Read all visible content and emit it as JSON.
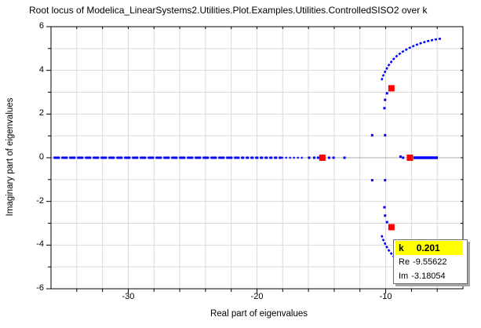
{
  "title": "Root locus of Modelica_LinearSystems2.Utilities.Plot.Examples.Utilities.ControlledSISO2 over k",
  "axes": {
    "x": {
      "label": "Real part of eigenvalues",
      "min": -36,
      "max": -4,
      "major_ticks": [
        {
          "v": -30,
          "label": "-30"
        },
        {
          "v": -20,
          "label": "-20"
        },
        {
          "v": -10,
          "label": "-10"
        }
      ],
      "minor_step": 2
    },
    "y": {
      "label": "Imaginary part of eigenvalues",
      "min": -6,
      "max": 6,
      "major_ticks": [
        {
          "v": 6,
          "label": "6"
        },
        {
          "v": 4,
          "label": "4"
        },
        {
          "v": 2,
          "label": "2"
        },
        {
          "v": 0,
          "label": "0"
        },
        {
          "v": -2,
          "label": "-2"
        },
        {
          "v": -4,
          "label": "-4"
        },
        {
          "v": -6,
          "label": "-6"
        }
      ],
      "minor_step": 1
    }
  },
  "tooltip": {
    "k_label": "k",
    "k_value": "0.201",
    "re_label": "Re",
    "re_value": "-9.55622",
    "im_label": "Im",
    "im_value": "-3.18054"
  },
  "colors": {
    "locus": "#0000ff",
    "marker": "#ff0000",
    "grid": "#d9d9d9",
    "grid_zero": "#a8a8a8",
    "frame": "#000000",
    "tooltip_highlight": "#ffff00",
    "tooltip_border": "#6e6e6e",
    "shadow": "#a6a6a6"
  },
  "chart_data": {
    "type": "scatter",
    "title": "Root locus of Modelica_LinearSystems2.Utilities.Plot.Examples.Utilities.ControlledSISO2 over k",
    "xlabel": "Real part of eigenvalues",
    "ylabel": "Imaginary part of eigenvalues",
    "xlim": [
      -36,
      -4
    ],
    "ylim": [
      -6,
      6
    ],
    "grid": true,
    "parameter": {
      "name": "k",
      "value": 0.201
    },
    "selected_eigenvalues": [
      {
        "re": -14.92,
        "im": 0
      },
      {
        "re": -8.12,
        "im": 0
      },
      {
        "re": -9.55622,
        "im": 3.18054
      },
      {
        "re": -9.55622,
        "im": -3.18054
      }
    ],
    "real_axis_segments": [
      {
        "x1": -35.8,
        "x2": -21.6,
        "y": 0,
        "dash": 8,
        "gap": 2,
        "width": 3
      },
      {
        "x1": -21.6,
        "x2": -18.1,
        "y": 0,
        "dash": 4,
        "gap": 2,
        "width": 3
      },
      {
        "x1": -18.1,
        "x2": -16.3,
        "y": 0,
        "dash": 2,
        "gap": 3,
        "width": 2.5
      },
      {
        "x1": -7.85,
        "x2": -5.95,
        "y": 0,
        "dash": 60,
        "gap": 0,
        "width": 3.5
      }
    ],
    "scatter_points": [
      [
        -15.95,
        0
      ],
      [
        -15.55,
        0
      ],
      [
        -15.25,
        0
      ],
      [
        -14.4,
        0
      ],
      [
        -14.05,
        0
      ],
      [
        -13.2,
        0
      ],
      [
        -8.85,
        0.05
      ],
      [
        -8.65,
        0
      ],
      [
        -11.05,
        1.03
      ],
      [
        -10.05,
        1.03
      ],
      [
        -11.05,
        -1.03
      ],
      [
        -10.05,
        -1.03
      ],
      [
        -10.1,
        2.27
      ],
      [
        -10.05,
        2.65
      ],
      [
        -9.9,
        2.95
      ],
      [
        -10.1,
        -2.27
      ],
      [
        -10.05,
        -2.65
      ],
      [
        -9.9,
        -2.95
      ]
    ],
    "upper_branch": [
      [
        -10.32,
        3.55
      ],
      [
        -10.2,
        3.75
      ],
      [
        -10.0,
        4.0
      ],
      [
        -9.75,
        4.25
      ],
      [
        -9.45,
        4.48
      ],
      [
        -9.1,
        4.68
      ],
      [
        -8.7,
        4.85
      ],
      [
        -8.25,
        5.0
      ],
      [
        -7.75,
        5.14
      ],
      [
        -7.2,
        5.26
      ],
      [
        -6.6,
        5.36
      ],
      [
        -6.0,
        5.43
      ],
      [
        -5.6,
        5.46
      ]
    ],
    "lower_branch": [
      [
        -10.32,
        -3.55
      ],
      [
        -10.2,
        -3.75
      ],
      [
        -10.0,
        -4.0
      ],
      [
        -9.75,
        -4.25
      ],
      [
        -9.45,
        -4.48
      ],
      [
        -9.1,
        -4.68
      ],
      [
        -8.7,
        -4.85
      ],
      [
        -8.25,
        -5.0
      ],
      [
        -7.75,
        -5.14
      ],
      [
        -7.2,
        -5.26
      ],
      [
        -6.6,
        -5.36
      ],
      [
        -6.0,
        -5.43
      ],
      [
        -5.6,
        -5.46
      ]
    ]
  }
}
